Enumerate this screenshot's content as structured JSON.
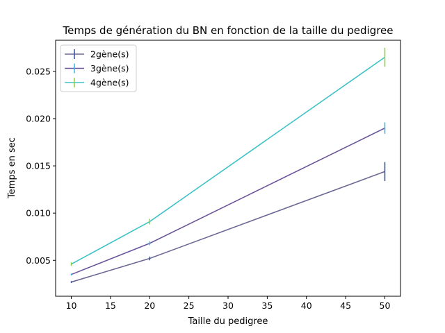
{
  "chart_data": {
    "type": "line",
    "title": "Temps de génération du BN en fonction de la taille du pedigree",
    "xlabel": "Taille du pedigree",
    "ylabel": "Temps en sec",
    "x": [
      10,
      20,
      50
    ],
    "xlim": [
      8,
      52
    ],
    "ylim": [
      0.0012,
      0.0283
    ],
    "xticks": [
      "10",
      "15",
      "20",
      "25",
      "30",
      "35",
      "40",
      "45",
      "50"
    ],
    "yticks": [
      "0.005",
      "0.010",
      "0.015",
      "0.020",
      "0.025"
    ],
    "legend_position": "top-left",
    "series": [
      {
        "name": "2gène(s)",
        "values": [
          0.0027,
          0.0052,
          0.0144
        ],
        "errors": [
          0.0001,
          0.0002,
          0.001
        ],
        "line_color": "#6c6a94",
        "errorbar_color": "#3b5ba5"
      },
      {
        "name": "3gène(s)",
        "values": [
          0.0035,
          0.0068,
          0.019
        ],
        "errors": [
          0.0001,
          0.0002,
          0.0006
        ],
        "line_color": "#6a559c",
        "errorbar_color": "#45b5e6"
      },
      {
        "name": "4gène(s)",
        "values": [
          0.0046,
          0.0091,
          0.0265
        ],
        "errors": [
          0.0002,
          0.0003,
          0.001
        ],
        "line_color": "#3ec2c8",
        "errorbar_color": "#8fd44a"
      }
    ]
  }
}
